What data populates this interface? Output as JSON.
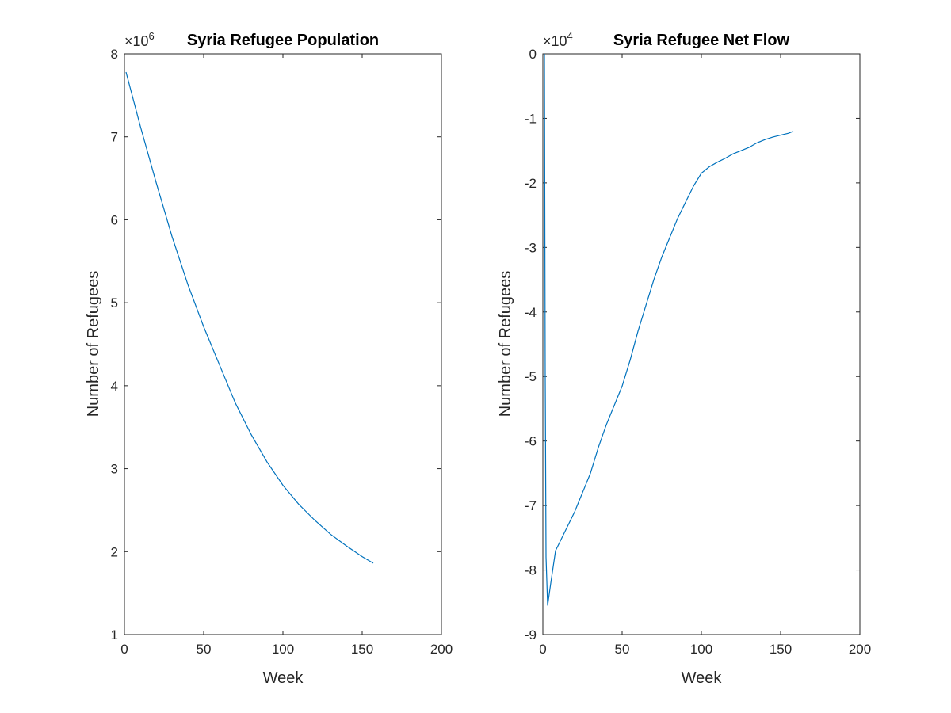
{
  "chart_data": [
    {
      "type": "line",
      "title": "Syria Refugee Population",
      "xlabel": "Week",
      "ylabel": "Number of Refugees",
      "y_exponent_base": "×10",
      "y_exponent": "6",
      "xlim": [
        0,
        200
      ],
      "ylim": [
        1,
        8
      ],
      "x_ticks": [
        0,
        50,
        100,
        150,
        200
      ],
      "y_ticks": [
        1,
        2,
        3,
        4,
        5,
        6,
        7,
        8
      ],
      "x_tick_labels": [
        "0",
        "50",
        "100",
        "150",
        "200"
      ],
      "y_tick_labels": [
        "1",
        "2",
        "3",
        "4",
        "5",
        "6",
        "7",
        "8"
      ],
      "grid": false,
      "color": "#0072BD",
      "series": [
        {
          "x": [
            1,
            10,
            20,
            30,
            40,
            50,
            60,
            70,
            80,
            90,
            100,
            110,
            120,
            130,
            140,
            150,
            157
          ],
          "y": [
            7.78,
            7.13,
            6.45,
            5.8,
            5.22,
            4.71,
            4.25,
            3.79,
            3.41,
            3.08,
            2.8,
            2.57,
            2.38,
            2.21,
            2.07,
            1.94,
            1.86
          ]
        }
      ]
    },
    {
      "type": "line",
      "title": "Syria Refugee Net Flow",
      "xlabel": "Week",
      "ylabel": "Number of Refugees",
      "y_exponent_base": "×10",
      "y_exponent": "4",
      "xlim": [
        0,
        200
      ],
      "ylim": [
        -9,
        0
      ],
      "x_ticks": [
        0,
        50,
        100,
        150,
        200
      ],
      "y_ticks": [
        -9,
        -8,
        -7,
        -6,
        -5,
        -4,
        -3,
        -2,
        -1,
        0
      ],
      "x_tick_labels": [
        "0",
        "50",
        "100",
        "150",
        "200"
      ],
      "y_tick_labels": [
        "-9",
        "-8",
        "-7",
        "-6",
        "-5",
        "-4",
        "-3",
        "-2",
        "-1",
        "0"
      ],
      "grid": false,
      "color": "#0072BD",
      "series": [
        {
          "x": [
            1,
            1.5,
            2,
            3,
            5,
            8,
            10,
            15,
            20,
            25,
            30,
            35,
            40,
            45,
            50,
            55,
            60,
            65,
            70,
            75,
            80,
            85,
            90,
            95,
            100,
            105,
            110,
            115,
            120,
            125,
            130,
            135,
            140,
            145,
            150,
            155,
            158
          ],
          "y": [
            0.0,
            -5.0,
            -7.8,
            -8.55,
            -8.2,
            -7.7,
            -7.6,
            -7.35,
            -7.1,
            -6.8,
            -6.5,
            -6.1,
            -5.75,
            -5.45,
            -5.15,
            -4.75,
            -4.3,
            -3.9,
            -3.5,
            -3.15,
            -2.85,
            -2.55,
            -2.3,
            -2.05,
            -1.85,
            -1.75,
            -1.68,
            -1.62,
            -1.55,
            -1.5,
            -1.45,
            -1.38,
            -1.33,
            -1.29,
            -1.26,
            -1.23,
            -1.2
          ]
        }
      ]
    }
  ]
}
